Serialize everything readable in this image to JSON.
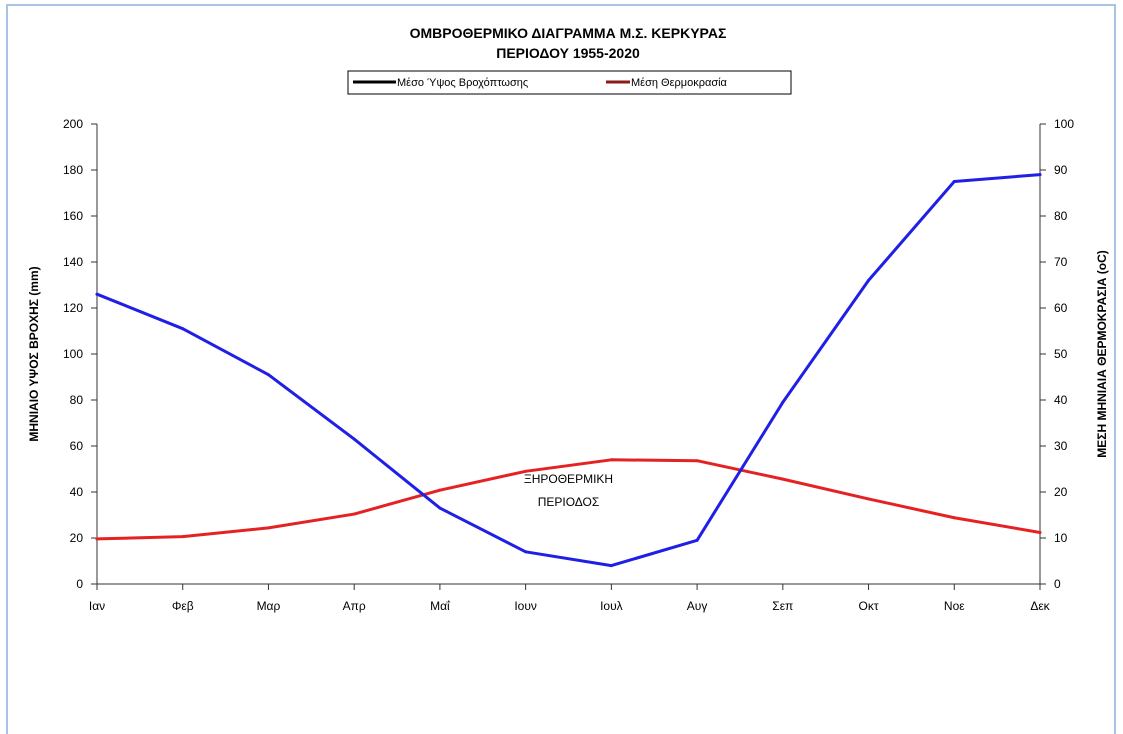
{
  "chart_data": {
    "type": "line",
    "title": "ΟΜΒΡΟΘΕΡΜΙΚΟ ΔΙΑΓΡΑΜΜΑ Μ.Σ. ΚΕΡΚΥΡΑΣ",
    "subtitle": "ΠΕΡΙΟΔΟΥ 1955-2020",
    "categories": [
      "Ιαν",
      "Φεβ",
      "Μαρ",
      "Απρ",
      "Μαΐ",
      "Ιουν",
      "Ιουλ",
      "Αυγ",
      "Σεπ",
      "Οκτ",
      "Νοε",
      "Δεκ"
    ],
    "ylabel_left": "ΜΗΝΙΑΙΟ ΥΨΟΣ ΒΡΟΧΗΣ (mm)",
    "ylabel_right": "ΜΕΣΗ ΜΗΝΙΑΙΑ ΘΕΡΜΟΚΡΑΣΙΑ (oC)",
    "ylim_left": [
      0,
      200
    ],
    "ylim_right": [
      0,
      100
    ],
    "yticks_left": [
      "0",
      "20",
      "40",
      "60",
      "80",
      "100",
      "120",
      "140",
      "160",
      "180",
      "200"
    ],
    "yticks_right": [
      "0",
      "10",
      "20",
      "30",
      "40",
      "50",
      "60",
      "70",
      "80",
      "90",
      "100"
    ],
    "grid": false,
    "legend_position": "top-center",
    "series": [
      {
        "name": "Μέσο Ύψος Βροχόπτωσης",
        "legend_color": "#000000",
        "line_color": "#1f1fe6",
        "axis": "left",
        "values": [
          126,
          111,
          91,
          63,
          33,
          14,
          8,
          19,
          79,
          132,
          175,
          178
        ]
      },
      {
        "name": "Μέση Θερμοκρασία",
        "legend_color": "#8b1a1a",
        "line_color": "#e52222",
        "axis": "right",
        "values": [
          9.8,
          10.3,
          12.2,
          15.2,
          20.4,
          24.5,
          27.0,
          26.8,
          22.8,
          18.5,
          14.4,
          11.2
        ]
      }
    ],
    "annotations": [
      {
        "text": "ΞΗΡΟΘΕΡΜΙΚΗ",
        "month": 6,
        "value_left": 44
      },
      {
        "text": "ΠΕΡΙΟΔΟΣ",
        "month": 6,
        "value_left": 34
      }
    ]
  }
}
